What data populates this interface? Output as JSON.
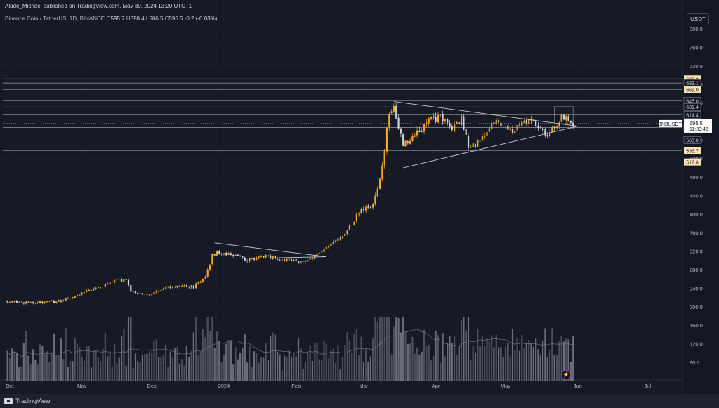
{
  "header": {
    "publish_line": "Alade_Michael published on TradingView.com, May 30, 2024 13:20 UTC+1",
    "symbol": "Binance Coin / TetherUS, 1D, BINANCE",
    "ohlc": [
      {
        "label": "O",
        "value": "595.7"
      },
      {
        "label": "H",
        "value": "598.4"
      },
      {
        "label": "L",
        "value": "586.5"
      },
      {
        "label": "C",
        "value": "595.5"
      }
    ],
    "change": "-0.2 (-0.03%)"
  },
  "currency_button": "USDT",
  "footer": {
    "brand": "TradingView"
  },
  "colors": {
    "up": "#f7a524",
    "down": "#d1d4dc",
    "line": "#c9ccd3",
    "bg": "#161a25",
    "grid": "#1f2330",
    "axis_text": "#b2b5be",
    "label_bg_highlight": "#fbe2b3",
    "current_price": "#ffffff"
  },
  "chart_data": {
    "type": "candlestick",
    "title": "Binance Coin / TetherUS, 1D, BINANCE",
    "ylim": [
      50,
      820
    ],
    "y_ticks": [
      "800.0",
      "760.0",
      "720.0",
      "680.0",
      "640.0",
      "600.0",
      "560.0",
      "520.0",
      "480.0",
      "440.0",
      "400.0",
      "360.0",
      "320.0",
      "280.0",
      "240.0",
      "200.0",
      "160.0",
      "120.0",
      "80.0"
    ],
    "x_ticks": [
      "Oct",
      "Nov",
      "Dec",
      "2024",
      "Feb",
      "Mar",
      "Apr",
      "May",
      "Jun",
      "Jul"
    ],
    "last_price": {
      "symbol": "BNBUSDT",
      "price": "595.5",
      "countdown": "11:39:46"
    },
    "price_levels": [
      {
        "value": 692.0,
        "label": "692.0",
        "highlight": true
      },
      {
        "value": 683.1,
        "label": "683.1",
        "highlight": false
      },
      {
        "value": 669.0,
        "label": "669.0",
        "highlight": true
      },
      {
        "value": 645.0,
        "label": "645.0",
        "highlight": false
      },
      {
        "value": 631.4,
        "label": "631.4",
        "highlight": false
      },
      {
        "value": 614.4,
        "label": "614.4",
        "highlight": false
      },
      {
        "value": 587.0,
        "label": "587.0",
        "highlight": false
      },
      {
        "value": 560.0,
        "label": "560.0",
        "highlight": false
      },
      {
        "value": 536.7,
        "label": "536.7",
        "highlight": true
      },
      {
        "value": 512.6,
        "label": "512.6",
        "highlight": true
      }
    ],
    "anchors": [
      {
        "date": "2023-09-30",
        "price": 213
      },
      {
        "date": "2023-10-10",
        "price": 208
      },
      {
        "date": "2023-10-22",
        "price": 212
      },
      {
        "date": "2023-10-31",
        "price": 226
      },
      {
        "date": "2023-11-10",
        "price": 247
      },
      {
        "date": "2023-11-15",
        "price": 257
      },
      {
        "date": "2023-11-20",
        "price": 258
      },
      {
        "date": "2023-11-22",
        "price": 230
      },
      {
        "date": "2023-11-30",
        "price": 228
      },
      {
        "date": "2023-12-08",
        "price": 242
      },
      {
        "date": "2023-12-14",
        "price": 246
      },
      {
        "date": "2023-12-19",
        "price": 243
      },
      {
        "date": "2023-12-24",
        "price": 265
      },
      {
        "date": "2023-12-27",
        "price": 310
      },
      {
        "date": "2023-12-29",
        "price": 318
      },
      {
        "date": "2024-01-05",
        "price": 310
      },
      {
        "date": "2024-01-12",
        "price": 300
      },
      {
        "date": "2024-01-20",
        "price": 310
      },
      {
        "date": "2024-01-26",
        "price": 300
      },
      {
        "date": "2024-02-02",
        "price": 298
      },
      {
        "date": "2024-02-09",
        "price": 308
      },
      {
        "date": "2024-02-15",
        "price": 330
      },
      {
        "date": "2024-02-20",
        "price": 350
      },
      {
        "date": "2024-02-25",
        "price": 380
      },
      {
        "date": "2024-02-29",
        "price": 410
      },
      {
        "date": "2024-03-05",
        "price": 420
      },
      {
        "date": "2024-03-08",
        "price": 480
      },
      {
        "date": "2024-03-10",
        "price": 540
      },
      {
        "date": "2024-03-12",
        "price": 620
      },
      {
        "date": "2024-03-14",
        "price": 630
      },
      {
        "date": "2024-03-18",
        "price": 550
      },
      {
        "date": "2024-03-20",
        "price": 560
      },
      {
        "date": "2024-03-25",
        "price": 580
      },
      {
        "date": "2024-03-29",
        "price": 600
      },
      {
        "date": "2024-04-03",
        "price": 610
      },
      {
        "date": "2024-04-08",
        "price": 585
      },
      {
        "date": "2024-04-12",
        "price": 605
      },
      {
        "date": "2024-04-15",
        "price": 545
      },
      {
        "date": "2024-04-20",
        "price": 555
      },
      {
        "date": "2024-04-25",
        "price": 600
      },
      {
        "date": "2024-04-30",
        "price": 595
      },
      {
        "date": "2024-05-04",
        "price": 575
      },
      {
        "date": "2024-05-08",
        "price": 595
      },
      {
        "date": "2024-05-13",
        "price": 600
      },
      {
        "date": "2024-05-18",
        "price": 570
      },
      {
        "date": "2024-05-22",
        "price": 590
      },
      {
        "date": "2024-05-25",
        "price": 610
      },
      {
        "date": "2024-05-29",
        "price": 600
      },
      {
        "date": "2024-05-30",
        "price": 595.5
      }
    ],
    "annotations": {
      "december_wedge_upper": [
        {
          "date": "2023-12-28",
          "price": 338
        },
        {
          "date": "2024-02-14",
          "price": 308
        }
      ],
      "december_wedge_lower": [
        {
          "date": "2024-01-18",
          "price": 305
        },
        {
          "date": "2024-02-14",
          "price": 308
        }
      ],
      "triangle_upper": [
        {
          "date": "2024-03-14",
          "price": 643
        },
        {
          "date": "2024-06-01",
          "price": 590
        }
      ],
      "triangle_lower": [
        {
          "date": "2024-03-18",
          "price": 500
        },
        {
          "date": "2024-06-01",
          "price": 590
        }
      ],
      "flag_box": [
        {
          "date": "2024-05-22",
          "price": 632
        },
        {
          "date": "2024-05-30",
          "price": 595
        }
      ]
    }
  }
}
